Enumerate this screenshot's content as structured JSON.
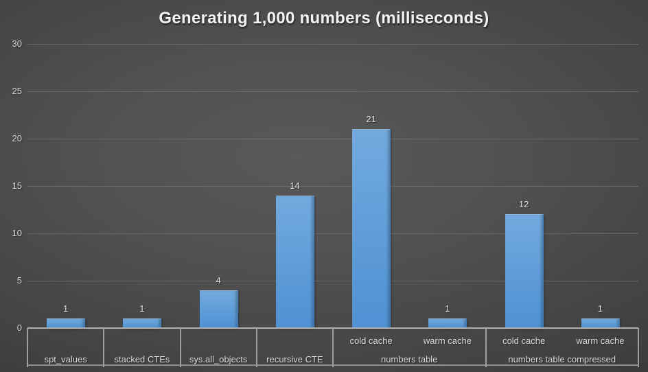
{
  "title": "Generating 1,000 numbers (milliseconds)",
  "y_axis": {
    "tick_labels": [
      "0",
      "5",
      "10",
      "15",
      "20",
      "25",
      "30"
    ]
  },
  "chart_data": {
    "type": "bar",
    "title": "Generating 1,000 numbers (milliseconds)",
    "ylim": [
      0,
      30
    ],
    "y_ticks": [
      0,
      5,
      10,
      15,
      20,
      25,
      30
    ],
    "grid": true,
    "legend": "none",
    "data_labels": true,
    "groups": [
      {
        "label": "spt_values",
        "items": [
          {
            "label": "",
            "value": 1
          }
        ]
      },
      {
        "label": "stacked CTEs",
        "items": [
          {
            "label": "",
            "value": 1
          }
        ]
      },
      {
        "label": "sys.all_objects",
        "items": [
          {
            "label": "",
            "value": 4
          }
        ]
      },
      {
        "label": "recursive CTE",
        "items": [
          {
            "label": "",
            "value": 14
          }
        ]
      },
      {
        "label": "numbers table",
        "items": [
          {
            "label": "cold cache",
            "value": 21
          },
          {
            "label": "warm cache",
            "value": 1
          }
        ]
      },
      {
        "label": "numbers table compressed",
        "items": [
          {
            "label": "cold cache",
            "value": 12
          },
          {
            "label": "warm cache",
            "value": 1
          }
        ]
      }
    ],
    "categories": [
      "spt_values",
      "stacked CTEs",
      "sys.all_objects",
      "recursive CTE",
      "numbers table / cold cache",
      "numbers table / warm cache",
      "numbers table compressed / cold cache",
      "numbers table compressed / warm cache"
    ],
    "values": [
      1,
      1,
      4,
      14,
      21,
      1,
      12,
      1
    ]
  },
  "colors": {
    "background_center": "#595959",
    "background_edge": "#2e2e2e",
    "bar_fill_top": "#72aade",
    "bar_fill_bottom": "#4f91d3",
    "bar_edge_dark": "#3f7fbe",
    "axis_line": "#b0b0b0",
    "divider_line": "#9e9e9e",
    "gridline": "#6e6e6e",
    "text": "#dcdcdc",
    "title_text": "#f3f3f3"
  }
}
